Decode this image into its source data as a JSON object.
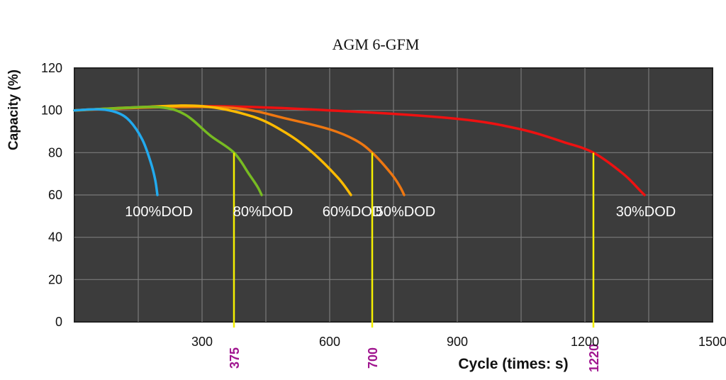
{
  "chart_data": {
    "type": "line",
    "title": "AGM 6-GFM",
    "xlabel": "Cycle (times: s)",
    "ylabel": "Capacity (%)",
    "xlim": [
      0,
      1500
    ],
    "ylim": [
      0,
      120
    ],
    "grid": true,
    "x_ticks": [
      300,
      600,
      900,
      1200,
      1500
    ],
    "y_ticks": [
      0,
      20,
      40,
      60,
      80,
      100,
      120
    ],
    "series": [
      {
        "name": "100%DOD",
        "color": "#22aaee",
        "points": [
          [
            0,
            100
          ],
          [
            60,
            100.5
          ],
          [
            100,
            99
          ],
          [
            130,
            95
          ],
          [
            160,
            86
          ],
          [
            180,
            75
          ],
          [
            190,
            67
          ],
          [
            195,
            60
          ]
        ]
      },
      {
        "name": "80%DOD",
        "color": "#77bb22",
        "points": [
          [
            0,
            100
          ],
          [
            100,
            101
          ],
          [
            200,
            101.5
          ],
          [
            260,
            98
          ],
          [
            320,
            88
          ],
          [
            375,
            80
          ],
          [
            410,
            70
          ],
          [
            430,
            64
          ],
          [
            440,
            60
          ]
        ]
      },
      {
        "name": "60%DOD",
        "color": "#ffbb00",
        "points": [
          [
            0,
            100
          ],
          [
            150,
            101.5
          ],
          [
            300,
            102
          ],
          [
            420,
            97
          ],
          [
            500,
            89
          ],
          [
            560,
            80
          ],
          [
            620,
            68
          ],
          [
            650,
            60
          ]
        ]
      },
      {
        "name": "50%DOD",
        "color": "#ee7711",
        "points": [
          [
            0,
            100
          ],
          [
            200,
            101.5
          ],
          [
            380,
            101
          ],
          [
            500,
            96
          ],
          [
            600,
            91
          ],
          [
            660,
            86
          ],
          [
            700,
            80
          ],
          [
            745,
            70
          ],
          [
            765,
            64
          ],
          [
            775,
            60
          ]
        ]
      },
      {
        "name": "30%DOD",
        "color": "#ee1111",
        "points": [
          [
            0,
            100
          ],
          [
            300,
            102
          ],
          [
            600,
            100
          ],
          [
            900,
            96
          ],
          [
            1050,
            91
          ],
          [
            1150,
            85
          ],
          [
            1220,
            80
          ],
          [
            1290,
            70
          ],
          [
            1330,
            62
          ],
          [
            1340,
            60
          ]
        ]
      }
    ],
    "annotations": [
      {
        "x": 375,
        "label": "375"
      },
      {
        "x": 700,
        "label": "700"
      },
      {
        "x": 1220,
        "label": "1220"
      }
    ],
    "colors": {
      "plot_background": "#3c3c3c",
      "gridline": "#7a7a7a",
      "annotation_line": "#f5f000",
      "annotation_text": "#a0158f",
      "series_label": "#ffffff"
    }
  }
}
